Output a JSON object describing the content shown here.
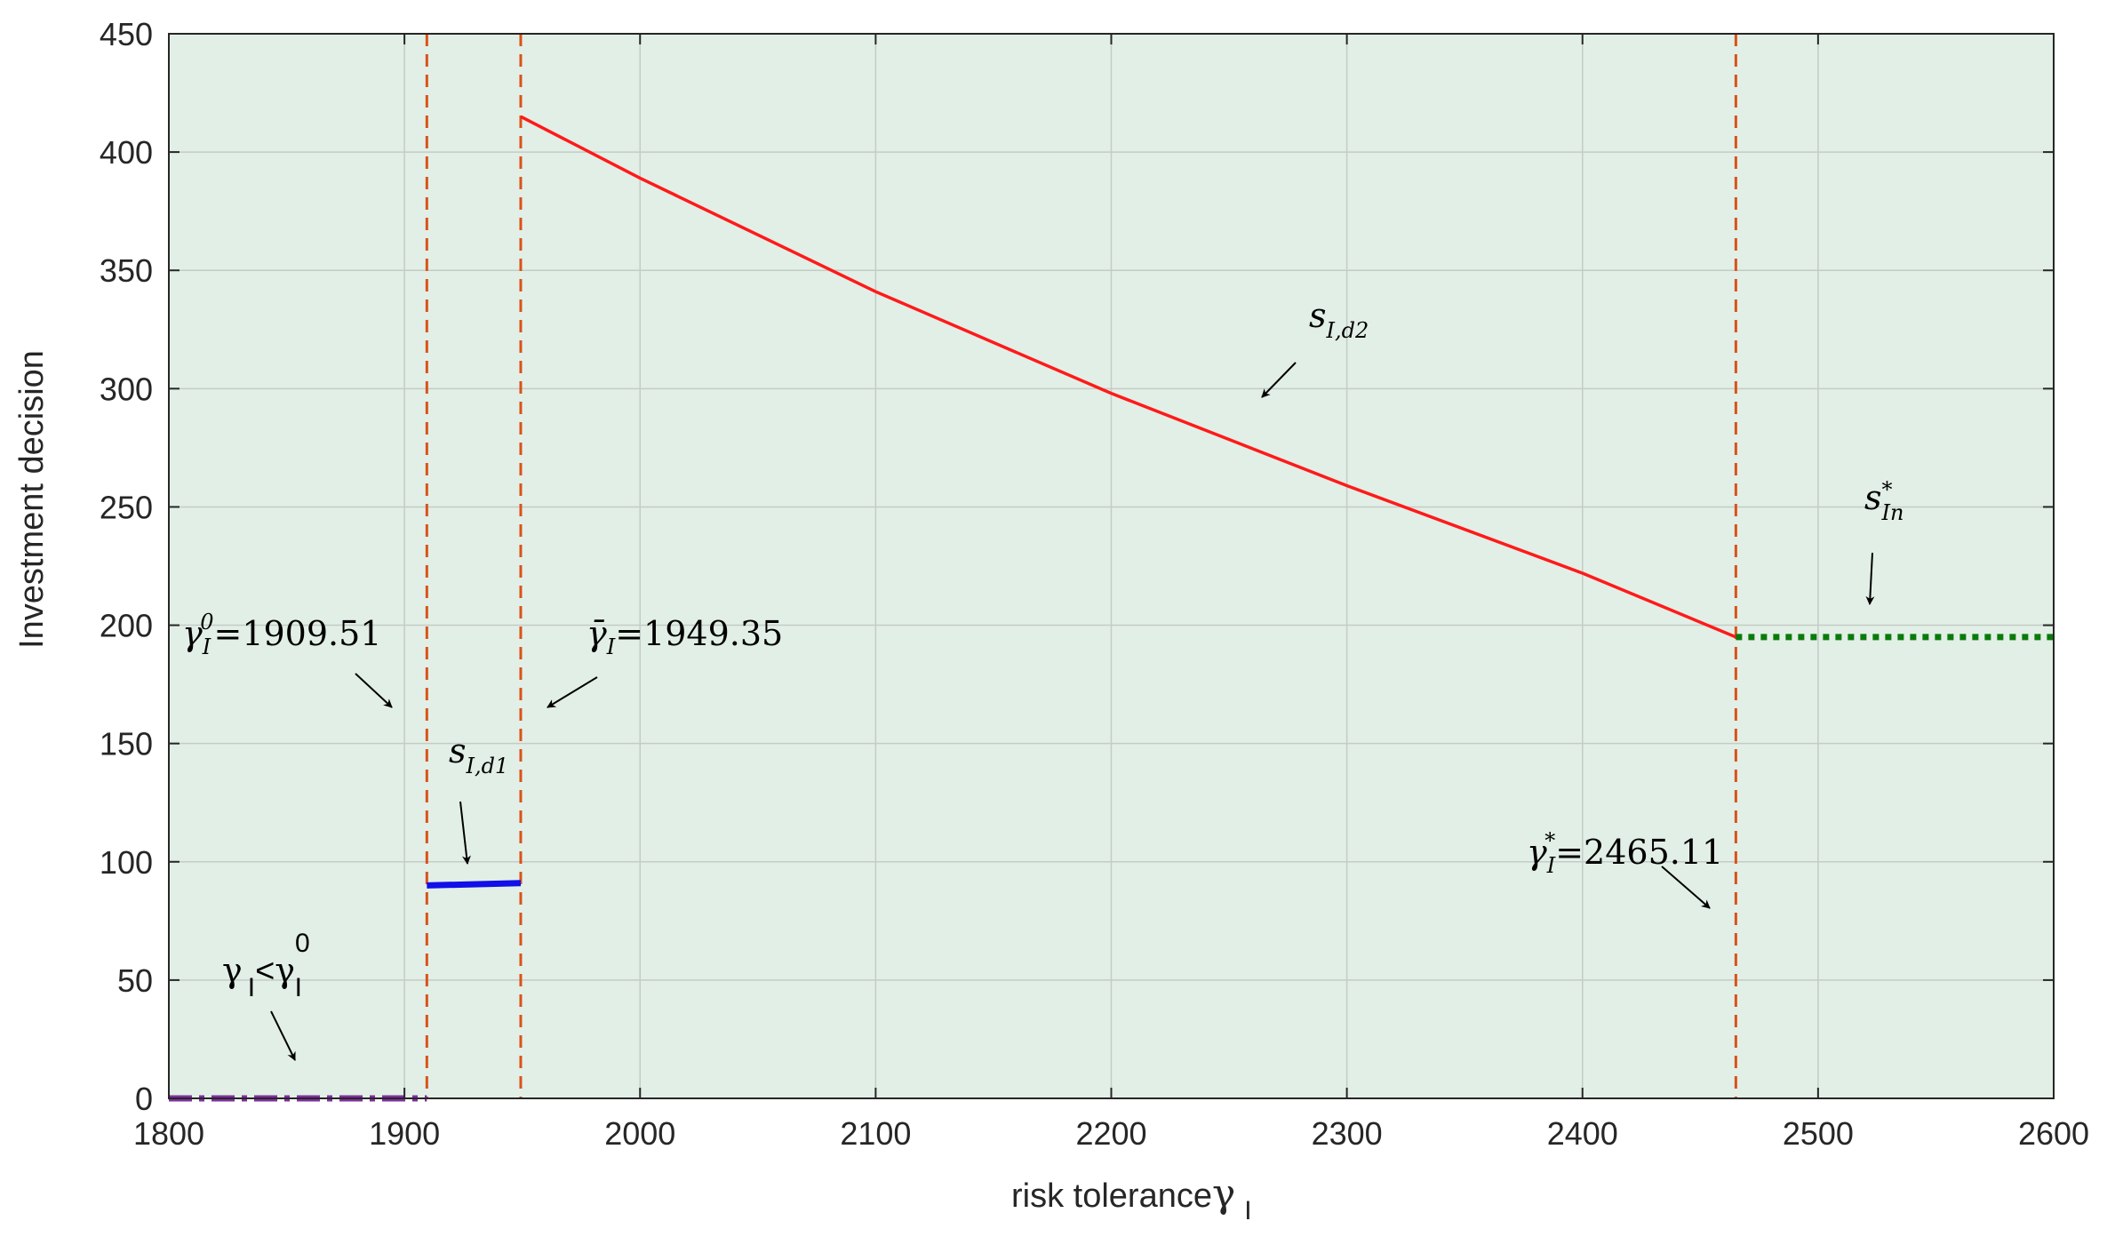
{
  "chart_data": {
    "type": "line",
    "xlabel": "risk tolerance",
    "xlabel_symbol": "γ",
    "xlabel_sub": "I",
    "ylabel": "Investment decision",
    "xlim": [
      1800,
      2600
    ],
    "ylim": [
      0,
      450
    ],
    "xticks": [
      1800,
      1900,
      2000,
      2100,
      2200,
      2300,
      2400,
      2500,
      2600
    ],
    "yticks": [
      0,
      50,
      100,
      150,
      200,
      250,
      300,
      350,
      400,
      450
    ],
    "grid": true,
    "colors": {
      "plot_background": "#e2efe6",
      "grid": "#c3ccc6",
      "s_I_d2": "#ff1a1a",
      "s_I_d1": "#1010e8",
      "s_In": "#0a7a0a",
      "low_region": "#7f2f9e",
      "vlines": "#d95319"
    },
    "series": [
      {
        "name": "s_I,d2",
        "style": "solid",
        "x": [
          1949.35,
          2000,
          2100,
          2200,
          2300,
          2400,
          2465.11
        ],
        "y": [
          415,
          389,
          341,
          298,
          259,
          222,
          195
        ]
      },
      {
        "name": "s_I,d1",
        "style": "solid-thick",
        "x": [
          1909.51,
          1949.35
        ],
        "y": [
          90,
          91
        ]
      },
      {
        "name": "s*_In",
        "style": "dotted",
        "x": [
          2465.11,
          2600
        ],
        "y": [
          195,
          195
        ]
      },
      {
        "name": "γ_I<γ_I^0",
        "style": "dashdot",
        "x": [
          1800,
          1909.51
        ],
        "y": [
          0,
          0
        ]
      }
    ],
    "vlines": [
      1909.51,
      1949.35,
      2465.11
    ],
    "annotations": {
      "gamma0": {
        "symbol": "γ",
        "sub": "I",
        "sup": "0",
        "value": "=1909.51"
      },
      "gammabar": {
        "symbol": "γ̄",
        "sub": "I",
        "value": "=1949.35"
      },
      "gammastar": {
        "symbol": "γ",
        "sub": "I",
        "sup": "*",
        "value": "=2465.11"
      },
      "sd1": {
        "symbol": "s",
        "sub": "I,d1"
      },
      "sd2": {
        "symbol": "s",
        "sub": "I,d2"
      },
      "sIn": {
        "symbol": "s",
        "sub": "In",
        "sup": "*"
      },
      "low": {
        "symbol": "γ",
        "sub": "I",
        "rel": "<",
        "symbol2": "γ",
        "sub2": "I",
        "sup2": "0"
      }
    }
  }
}
